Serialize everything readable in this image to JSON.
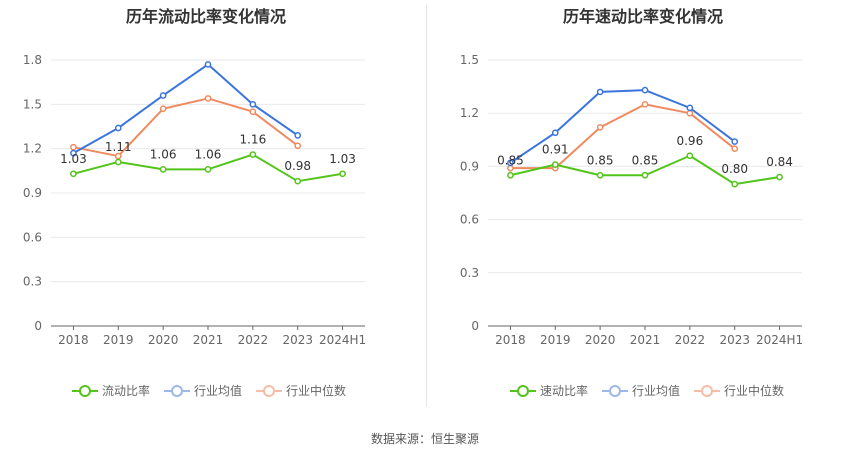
{
  "footer": {
    "source": "数据来源：恒生聚源"
  },
  "colors": {
    "main": "#52c41a",
    "avg": "#3a75dd",
    "median": "#f08b60"
  },
  "chart_data": [
    {
      "type": "line",
      "title": "历年流动比率变化情况",
      "categories": [
        "2018",
        "2019",
        "2020",
        "2021",
        "2022",
        "2023",
        "2024H1"
      ],
      "y_ticks": [
        "0",
        "0.3",
        "0.6",
        "0.9",
        "1.2",
        "1.5",
        "1.8"
      ],
      "ylim": [
        0,
        1.8
      ],
      "series": [
        {
          "name": "流动比率",
          "values": [
            1.03,
            1.11,
            1.06,
            1.06,
            1.16,
            0.98,
            1.03
          ],
          "labels": [
            "1.03",
            "1.11",
            "1.06",
            "1.06",
            "1.16",
            "0.98",
            "1.03"
          ]
        },
        {
          "name": "行业均值",
          "values": [
            1.17,
            1.34,
            1.56,
            1.77,
            1.5,
            1.29,
            null
          ]
        },
        {
          "name": "行业中位数",
          "values": [
            1.21,
            1.15,
            1.47,
            1.54,
            1.45,
            1.22,
            null
          ]
        }
      ]
    },
    {
      "type": "line",
      "title": "历年速动比率变化情况",
      "categories": [
        "2018",
        "2019",
        "2020",
        "2021",
        "2022",
        "2023",
        "2024H1"
      ],
      "y_ticks": [
        "0",
        "0.3",
        "0.6",
        "0.9",
        "1.2",
        "1.5"
      ],
      "ylim": [
        0,
        1.5
      ],
      "series": [
        {
          "name": "速动比率",
          "values": [
            0.85,
            0.91,
            0.85,
            0.85,
            0.96,
            0.8,
            0.84
          ],
          "labels": [
            "0.85",
            "0.91",
            "0.85",
            "0.85",
            "0.96",
            "0.80",
            "0.84"
          ]
        },
        {
          "name": "行业均值",
          "values": [
            0.92,
            1.09,
            1.32,
            1.33,
            1.23,
            1.04,
            null
          ]
        },
        {
          "name": "行业中位数",
          "values": [
            0.89,
            0.89,
            1.12,
            1.25,
            1.2,
            1.0,
            null
          ]
        }
      ]
    }
  ]
}
